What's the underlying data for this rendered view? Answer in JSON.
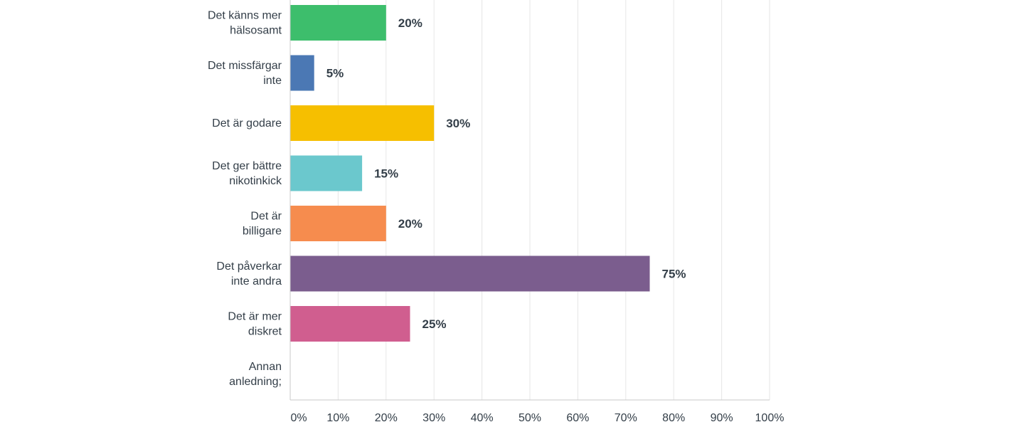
{
  "chart_data": {
    "type": "bar",
    "orientation": "horizontal",
    "title": "",
    "xlabel": "",
    "ylabel": "",
    "xlim": [
      0,
      100
    ],
    "grid": true,
    "value_suffix": "%",
    "ticks": [
      0,
      10,
      20,
      30,
      40,
      50,
      60,
      70,
      80,
      90,
      100
    ],
    "tick_labels": [
      "0%",
      "10%",
      "20%",
      "30%",
      "40%",
      "50%",
      "60%",
      "70%",
      "80%",
      "90%",
      "100%"
    ],
    "categories": [
      [
        "Det känns mer",
        "hälsosamt"
      ],
      [
        "Det missfärgar",
        "inte"
      ],
      [
        "Det är godare"
      ],
      [
        "Det ger bättre",
        "nikotinkick"
      ],
      [
        "Det är",
        "billigare"
      ],
      [
        "Det påverkar",
        "inte andra"
      ],
      [
        "Det är mer",
        "diskret"
      ],
      [
        "Annan",
        "anledning;"
      ]
    ],
    "values": [
      20,
      5,
      30,
      15,
      20,
      75,
      25,
      0
    ],
    "value_labels": [
      "20%",
      "5%",
      "30%",
      "15%",
      "20%",
      "75%",
      "25%",
      ""
    ],
    "colors": [
      "#3dbe6c",
      "#4b78b4",
      "#f6bf00",
      "#6bc8cd",
      "#f68c4e",
      "#7b5d8e",
      "#d05e8f",
      "#999999"
    ]
  }
}
